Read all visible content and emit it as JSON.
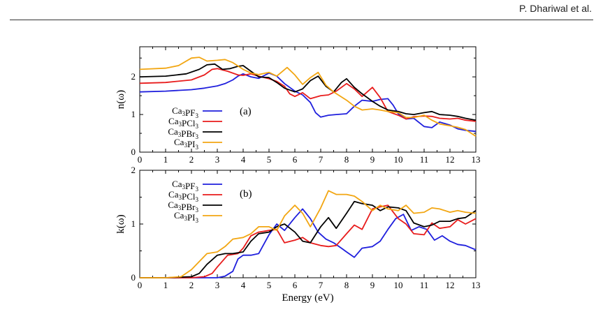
{
  "header": {
    "author": "P. Dhariwal et al."
  },
  "chart_data": [
    {
      "type": "line",
      "panel_label": "(a)",
      "ylabel": "n(ω)",
      "xlabel": "",
      "xlim": [
        0,
        13
      ],
      "ylim": [
        0,
        2.8
      ],
      "xticks": [
        0,
        1,
        2,
        3,
        4,
        5,
        6,
        7,
        8,
        9,
        10,
        11,
        12,
        13
      ],
      "yticks": [
        0,
        1,
        2
      ],
      "grid": false,
      "legend": "left-middle",
      "series": [
        {
          "name_base": "Ca",
          "name_sub1": "3",
          "name_mid": "PF",
          "name_sub2": "3",
          "color": "#1f1fdd",
          "x": [
            0,
            1,
            2,
            2.5,
            3,
            3.3,
            3.6,
            3.8,
            4,
            4.3,
            4.6,
            5,
            5.3,
            5.6,
            6,
            6.3,
            6.6,
            6.8,
            7,
            7.3,
            7.6,
            8,
            8.3,
            8.6,
            9,
            9.3,
            9.6,
            9.8,
            10,
            10.3,
            10.6,
            11,
            11.3,
            11.6,
            12,
            12.3,
            12.6,
            13
          ],
          "y": [
            1.6,
            1.62,
            1.66,
            1.7,
            1.76,
            1.82,
            1.92,
            2.02,
            2.08,
            2.0,
            1.96,
            2.1,
            2.02,
            1.82,
            1.62,
            1.52,
            1.32,
            1.05,
            0.93,
            0.98,
            1.0,
            1.02,
            1.22,
            1.38,
            1.35,
            1.4,
            1.42,
            1.25,
            1.02,
            0.88,
            0.9,
            0.68,
            0.65,
            0.8,
            0.72,
            0.62,
            0.58,
            0.55
          ]
        },
        {
          "name_base": "Ca",
          "name_sub1": "3",
          "name_mid": "PCl",
          "name_sub2": "3",
          "color": "#e81c1c",
          "x": [
            0,
            1,
            2,
            2.5,
            2.8,
            3,
            3.4,
            3.8,
            4,
            4.3,
            4.6,
            5,
            5.3,
            5.6,
            5.8,
            6,
            6.3,
            6.6,
            7,
            7.3,
            7.6,
            8,
            8.3,
            8.6,
            9,
            9.3,
            9.6,
            10,
            10.3,
            10.6,
            11,
            11.3,
            11.6,
            12,
            12.3,
            12.6,
            13
          ],
          "y": [
            1.83,
            1.85,
            1.92,
            2.05,
            2.2,
            2.22,
            2.15,
            2.05,
            2.04,
            2.08,
            2.02,
            1.95,
            1.88,
            1.75,
            1.55,
            1.48,
            1.58,
            1.42,
            1.5,
            1.52,
            1.62,
            1.82,
            1.68,
            1.48,
            1.72,
            1.45,
            1.08,
            0.98,
            0.88,
            0.94,
            0.96,
            0.95,
            0.9,
            0.88,
            0.9,
            0.85,
            0.82
          ]
        },
        {
          "name_base": "Ca",
          "name_sub1": "3",
          "name_mid": "PBr",
          "name_sub2": "3",
          "color": "#000000",
          "x": [
            0,
            1,
            1.8,
            2.3,
            2.6,
            2.9,
            3.2,
            3.5,
            3.8,
            4,
            4.3,
            4.6,
            5,
            5.3,
            5.6,
            6,
            6.3,
            6.6,
            6.9,
            7.2,
            7.5,
            7.8,
            8,
            8.3,
            8.6,
            9,
            9.3,
            9.6,
            10,
            10.3,
            10.6,
            11,
            11.3,
            11.6,
            12,
            12.3,
            12.6,
            13
          ],
          "y": [
            2.0,
            2.02,
            2.08,
            2.2,
            2.32,
            2.34,
            2.2,
            2.22,
            2.28,
            2.3,
            2.15,
            2.0,
            1.98,
            1.85,
            1.7,
            1.6,
            1.68,
            1.9,
            2.02,
            1.75,
            1.6,
            1.85,
            1.95,
            1.72,
            1.55,
            1.35,
            1.22,
            1.12,
            1.08,
            1.02,
            1.0,
            1.05,
            1.08,
            1.0,
            0.98,
            0.95,
            0.9,
            0.85
          ]
        },
        {
          "name_base": "Ca",
          "name_sub1": "3",
          "name_mid": "PI",
          "name_sub2": "3",
          "color": "#f2a612",
          "x": [
            0,
            1,
            1.5,
            2,
            2.3,
            2.6,
            3,
            3.3,
            3.6,
            4,
            4.3,
            4.6,
            5,
            5.3,
            5.7,
            6,
            6.3,
            6.6,
            6.9,
            7.2,
            7.5,
            8,
            8.3,
            8.6,
            9,
            9.3,
            9.6,
            10,
            10.3,
            10.6,
            11,
            11.3,
            11.6,
            12,
            12.3,
            12.6,
            13
          ],
          "y": [
            2.2,
            2.23,
            2.3,
            2.5,
            2.52,
            2.42,
            2.44,
            2.46,
            2.38,
            2.2,
            2.1,
            2.06,
            2.12,
            2.02,
            2.25,
            2.05,
            1.8,
            1.98,
            2.12,
            1.78,
            1.6,
            1.38,
            1.22,
            1.12,
            1.15,
            1.12,
            1.08,
            1.05,
            0.92,
            0.92,
            0.98,
            0.85,
            0.75,
            0.7,
            0.66,
            0.6,
            0.42
          ]
        }
      ]
    },
    {
      "type": "line",
      "panel_label": "(b)",
      "ylabel": "k(ω)",
      "xlabel": "Energy (eV)",
      "xlim": [
        0,
        13
      ],
      "ylim": [
        0,
        2
      ],
      "xticks": [
        0,
        1,
        2,
        3,
        4,
        5,
        6,
        7,
        8,
        9,
        10,
        11,
        12,
        13
      ],
      "yticks": [
        0,
        1,
        2
      ],
      "grid": false,
      "legend": "left-top",
      "series": [
        {
          "name_base": "Ca",
          "name_sub1": "3",
          "name_mid": "PF",
          "name_sub2": "3",
          "color": "#1f1fdd",
          "x": [
            0,
            1,
            2,
            2.5,
            3,
            3.3,
            3.6,
            3.8,
            4,
            4.3,
            4.6,
            5,
            5.3,
            5.6,
            6,
            6.3,
            6.6,
            6.9,
            7.2,
            7.5,
            7.8,
            8,
            8.3,
            8.6,
            9,
            9.3,
            9.6,
            9.9,
            10.2,
            10.5,
            10.8,
            11.1,
            11.4,
            11.7,
            12,
            12.3,
            12.6,
            13
          ],
          "y": [
            0,
            0,
            0,
            0,
            0,
            0.03,
            0.12,
            0.35,
            0.42,
            0.42,
            0.45,
            0.8,
            1.0,
            0.88,
            1.12,
            1.28,
            1.1,
            0.85,
            0.72,
            0.65,
            0.55,
            0.48,
            0.38,
            0.55,
            0.58,
            0.68,
            0.9,
            1.1,
            1.18,
            0.88,
            0.95,
            0.9,
            0.7,
            0.78,
            0.68,
            0.62,
            0.6,
            0.52
          ]
        },
        {
          "name_base": "Ca",
          "name_sub1": "3",
          "name_mid": "PCl",
          "name_sub2": "3",
          "color": "#e81c1c",
          "x": [
            0,
            1,
            2,
            2.5,
            2.8,
            3,
            3.4,
            3.8,
            4,
            4.3,
            4.6,
            5,
            5.3,
            5.6,
            6,
            6.3,
            6.6,
            7,
            7.3,
            7.6,
            8,
            8.3,
            8.6,
            9,
            9.3,
            9.6,
            10,
            10.3,
            10.6,
            11,
            11.3,
            11.6,
            12,
            12.3,
            12.6,
            13
          ],
          "y": [
            0,
            0,
            0,
            0.02,
            0.08,
            0.2,
            0.42,
            0.45,
            0.55,
            0.78,
            0.85,
            0.88,
            0.9,
            0.65,
            0.7,
            0.75,
            0.65,
            0.6,
            0.58,
            0.6,
            0.82,
            0.98,
            0.9,
            1.28,
            1.32,
            1.35,
            1.1,
            1.0,
            0.82,
            0.8,
            1.02,
            0.92,
            0.95,
            1.08,
            1.0,
            1.1
          ]
        },
        {
          "name_base": "Ca",
          "name_sub1": "3",
          "name_mid": "PBr",
          "name_sub2": "3",
          "color": "#000000",
          "x": [
            0,
            1,
            2,
            2.3,
            2.6,
            3,
            3.3,
            3.6,
            4,
            4.3,
            4.6,
            5,
            5.3,
            5.6,
            6,
            6.3,
            6.6,
            7,
            7.3,
            7.6,
            8,
            8.3,
            8.6,
            9,
            9.3,
            9.6,
            10,
            10.3,
            10.6,
            11,
            11.3,
            11.6,
            12,
            12.3,
            12.6,
            13
          ],
          "y": [
            0,
            0,
            0.02,
            0.08,
            0.25,
            0.42,
            0.45,
            0.45,
            0.48,
            0.68,
            0.82,
            0.85,
            0.95,
            1.0,
            0.85,
            0.68,
            0.65,
            0.95,
            1.12,
            0.92,
            1.2,
            1.42,
            1.38,
            1.35,
            1.25,
            1.32,
            1.3,
            1.25,
            1.02,
            0.95,
            0.98,
            1.05,
            1.05,
            1.1,
            1.12,
            1.25
          ]
        },
        {
          "name_base": "Ca",
          "name_sub1": "3",
          "name_mid": "PI",
          "name_sub2": "3",
          "color": "#f2a612",
          "x": [
            0,
            1,
            1.6,
            2,
            2.3,
            2.6,
            3,
            3.3,
            3.6,
            4,
            4.3,
            4.6,
            5,
            5.3,
            5.6,
            6,
            6.3,
            6.6,
            7,
            7.3,
            7.6,
            8,
            8.3,
            8.6,
            9,
            9.3,
            9.6,
            10,
            10.3,
            10.6,
            11,
            11.3,
            11.6,
            12,
            12.3,
            12.6,
            13
          ],
          "y": [
            0,
            0,
            0.02,
            0.15,
            0.3,
            0.45,
            0.48,
            0.58,
            0.72,
            0.75,
            0.82,
            0.95,
            0.95,
            0.88,
            1.15,
            1.35,
            1.2,
            0.95,
            1.3,
            1.62,
            1.55,
            1.55,
            1.52,
            1.42,
            1.25,
            1.35,
            1.28,
            1.25,
            1.35,
            1.2,
            1.22,
            1.3,
            1.28,
            1.22,
            1.25,
            1.22,
            1.2
          ]
        }
      ]
    }
  ]
}
